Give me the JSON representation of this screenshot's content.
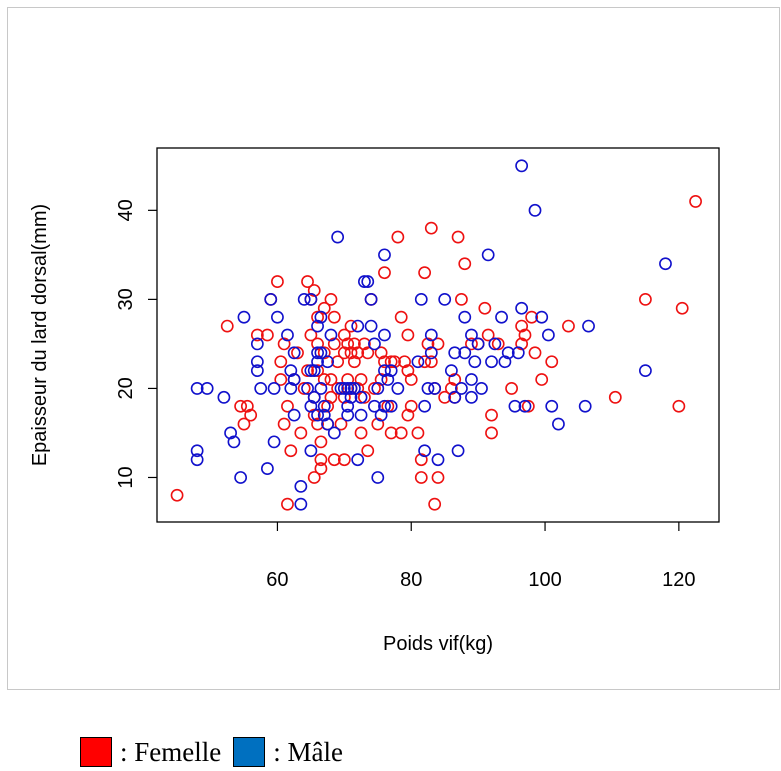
{
  "colors": {
    "femelle": "#ee1111",
    "male": "#1111cc",
    "legend_femelle": "#ff0000",
    "legend_male": "#0070c0"
  },
  "legend": {
    "femelle_label": ": Femelle",
    "male_label": ": Mâle"
  },
  "chart_data": {
    "type": "scatter",
    "xlabel": "Poids vif(kg)",
    "ylabel": "Epaisseur du lard dorsal(mm)",
    "xlim": [
      42,
      126
    ],
    "ylim": [
      5,
      47
    ],
    "xticks": [
      60,
      80,
      100,
      120
    ],
    "yticks": [
      10,
      20,
      30,
      40
    ],
    "grid": false,
    "series": [
      {
        "name": "Femelle",
        "color": "#ee1111",
        "points": [
          [
            45,
            8
          ],
          [
            52.5,
            27
          ],
          [
            54.5,
            18
          ],
          [
            55,
            16
          ],
          [
            55.5,
            18
          ],
          [
            56,
            17
          ],
          [
            57,
            26
          ],
          [
            58.5,
            26
          ],
          [
            59,
            30
          ],
          [
            60,
            32
          ],
          [
            60.5,
            23
          ],
          [
            60.5,
            21
          ],
          [
            61,
            25
          ],
          [
            61,
            16
          ],
          [
            61.5,
            7
          ],
          [
            61.5,
            18
          ],
          [
            62,
            13
          ],
          [
            62.5,
            21
          ],
          [
            63,
            24
          ],
          [
            63.5,
            15
          ],
          [
            64,
            20
          ],
          [
            64.5,
            32
          ],
          [
            64.5,
            22
          ],
          [
            65,
            30
          ],
          [
            65,
            26
          ],
          [
            65.5,
            31
          ],
          [
            65.5,
            19
          ],
          [
            65.5,
            17
          ],
          [
            65.5,
            10
          ],
          [
            66,
            28
          ],
          [
            66,
            25
          ],
          [
            66,
            22
          ],
          [
            66,
            16
          ],
          [
            66.5,
            14
          ],
          [
            66.5,
            12
          ],
          [
            66.5,
            11
          ],
          [
            67,
            29
          ],
          [
            67,
            24
          ],
          [
            67,
            21
          ],
          [
            67.5,
            18
          ],
          [
            67.5,
            16
          ],
          [
            68,
            30
          ],
          [
            68,
            21
          ],
          [
            68,
            19
          ],
          [
            68.5,
            28
          ],
          [
            68.5,
            25
          ],
          [
            68.5,
            12
          ],
          [
            69,
            23
          ],
          [
            69,
            20
          ],
          [
            69.5,
            16
          ],
          [
            70,
            26
          ],
          [
            70,
            24
          ],
          [
            70,
            19
          ],
          [
            70,
            12
          ],
          [
            70.5,
            25
          ],
          [
            70.5,
            21
          ],
          [
            71,
            24
          ],
          [
            71,
            27
          ],
          [
            71,
            20
          ],
          [
            71.5,
            25
          ],
          [
            71.5,
            23
          ],
          [
            72,
            24
          ],
          [
            72,
            20
          ],
          [
            72.5,
            21
          ],
          [
            72.5,
            15
          ],
          [
            73,
            25
          ],
          [
            73,
            19
          ],
          [
            73.5,
            24
          ],
          [
            73.5,
            13
          ],
          [
            74,
            30
          ],
          [
            74.5,
            20
          ],
          [
            75,
            16
          ],
          [
            75.5,
            21
          ],
          [
            75.5,
            24
          ],
          [
            76,
            33
          ],
          [
            76,
            23
          ],
          [
            76.5,
            18
          ],
          [
            77,
            23
          ],
          [
            77,
            15
          ],
          [
            77.5,
            23
          ],
          [
            78,
            37
          ],
          [
            78.5,
            28
          ],
          [
            78.5,
            15
          ],
          [
            79,
            23
          ],
          [
            79.5,
            26
          ],
          [
            79.5,
            22
          ],
          [
            79.5,
            17
          ],
          [
            80,
            18
          ],
          [
            80,
            21
          ],
          [
            81,
            15
          ],
          [
            81.5,
            12
          ],
          [
            81.5,
            10
          ],
          [
            82,
            33
          ],
          [
            82,
            23
          ],
          [
            82.5,
            25
          ],
          [
            83,
            38
          ],
          [
            83,
            23
          ],
          [
            83.5,
            20
          ],
          [
            83.5,
            7
          ],
          [
            84,
            10
          ],
          [
            84,
            25
          ],
          [
            85,
            19
          ],
          [
            86,
            20
          ],
          [
            86.5,
            21
          ],
          [
            86.5,
            19
          ],
          [
            87,
            37
          ],
          [
            87.5,
            30
          ],
          [
            88,
            34
          ],
          [
            89,
            25
          ],
          [
            90,
            25
          ],
          [
            91,
            29
          ],
          [
            91.5,
            26
          ],
          [
            92,
            17
          ],
          [
            92,
            15
          ],
          [
            93,
            25
          ],
          [
            95,
            20
          ],
          [
            96.5,
            27
          ],
          [
            96.5,
            25
          ],
          [
            97,
            26
          ],
          [
            97.5,
            18
          ],
          [
            98,
            28
          ],
          [
            98.5,
            24
          ],
          [
            99.5,
            21
          ],
          [
            101,
            23
          ],
          [
            103.5,
            27
          ],
          [
            110.5,
            19
          ],
          [
            115,
            30
          ],
          [
            120,
            18
          ],
          [
            120.5,
            29
          ],
          [
            122.5,
            41
          ]
        ]
      },
      {
        "name": "Mâle",
        "color": "#1111cc",
        "points": [
          [
            48,
            13
          ],
          [
            48,
            12
          ],
          [
            48,
            20
          ],
          [
            49.5,
            20
          ],
          [
            52,
            19
          ],
          [
            53,
            15
          ],
          [
            53.5,
            14
          ],
          [
            54.5,
            10
          ],
          [
            55,
            28
          ],
          [
            57,
            25
          ],
          [
            57,
            23
          ],
          [
            57,
            22
          ],
          [
            57.5,
            20
          ],
          [
            58.5,
            11
          ],
          [
            59,
            30
          ],
          [
            59.5,
            14
          ],
          [
            59.5,
            20
          ],
          [
            60,
            28
          ],
          [
            61.5,
            26
          ],
          [
            62,
            22
          ],
          [
            62,
            20
          ],
          [
            62.5,
            24
          ],
          [
            62.5,
            21
          ],
          [
            62.5,
            17
          ],
          [
            63.5,
            9
          ],
          [
            63.5,
            7
          ],
          [
            64,
            30
          ],
          [
            64.5,
            20
          ],
          [
            65,
            30
          ],
          [
            65,
            22
          ],
          [
            65,
            18
          ],
          [
            65,
            13
          ],
          [
            65.5,
            22
          ],
          [
            65.5,
            19
          ],
          [
            66,
            27
          ],
          [
            66,
            24
          ],
          [
            66,
            23
          ],
          [
            66,
            17
          ],
          [
            66.5,
            28
          ],
          [
            66.5,
            24
          ],
          [
            66.5,
            20
          ],
          [
            67,
            18
          ],
          [
            67,
            17
          ],
          [
            67.5,
            23
          ],
          [
            67.5,
            16
          ],
          [
            68,
            26
          ],
          [
            68.5,
            15
          ],
          [
            69,
            37
          ],
          [
            69.5,
            20
          ],
          [
            70,
            20
          ],
          [
            70.5,
            20
          ],
          [
            70.5,
            18
          ],
          [
            70.5,
            17
          ],
          [
            71,
            19
          ],
          [
            71,
            20
          ],
          [
            71.5,
            20
          ],
          [
            72,
            12
          ],
          [
            72,
            27
          ],
          [
            72.5,
            19
          ],
          [
            72.5,
            17
          ],
          [
            73,
            32
          ],
          [
            73.5,
            32
          ],
          [
            74,
            27
          ],
          [
            74,
            30
          ],
          [
            74.5,
            25
          ],
          [
            74.5,
            18
          ],
          [
            75,
            10
          ],
          [
            75,
            20
          ],
          [
            75.5,
            17
          ],
          [
            76,
            35
          ],
          [
            76,
            26
          ],
          [
            76,
            22
          ],
          [
            76,
            18
          ],
          [
            76.5,
            21
          ],
          [
            77,
            22
          ],
          [
            77,
            18
          ],
          [
            78,
            20
          ],
          [
            81,
            23
          ],
          [
            81.5,
            30
          ],
          [
            82,
            13
          ],
          [
            82,
            18
          ],
          [
            82.5,
            20
          ],
          [
            83,
            24
          ],
          [
            83,
            26
          ],
          [
            83.5,
            20
          ],
          [
            84,
            12
          ],
          [
            85,
            30
          ],
          [
            86,
            22
          ],
          [
            86.5,
            24
          ],
          [
            86.5,
            19
          ],
          [
            87,
            13
          ],
          [
            87.5,
            20
          ],
          [
            88,
            28
          ],
          [
            88,
            24
          ],
          [
            89,
            26
          ],
          [
            89,
            21
          ],
          [
            89,
            19
          ],
          [
            89.5,
            23
          ],
          [
            90,
            25
          ],
          [
            90.5,
            20
          ],
          [
            91.5,
            35
          ],
          [
            92,
            23
          ],
          [
            92.5,
            25
          ],
          [
            93.5,
            28
          ],
          [
            94,
            23
          ],
          [
            94.5,
            24
          ],
          [
            95.5,
            18
          ],
          [
            96,
            24
          ],
          [
            96.5,
            45
          ],
          [
            96.5,
            29
          ],
          [
            97,
            18
          ],
          [
            98.5,
            40
          ],
          [
            99.5,
            28
          ],
          [
            100.5,
            26
          ],
          [
            101,
            18
          ],
          [
            102,
            16
          ],
          [
            106,
            18
          ],
          [
            106.5,
            27
          ],
          [
            115,
            22
          ],
          [
            118,
            34
          ]
        ]
      }
    ]
  }
}
